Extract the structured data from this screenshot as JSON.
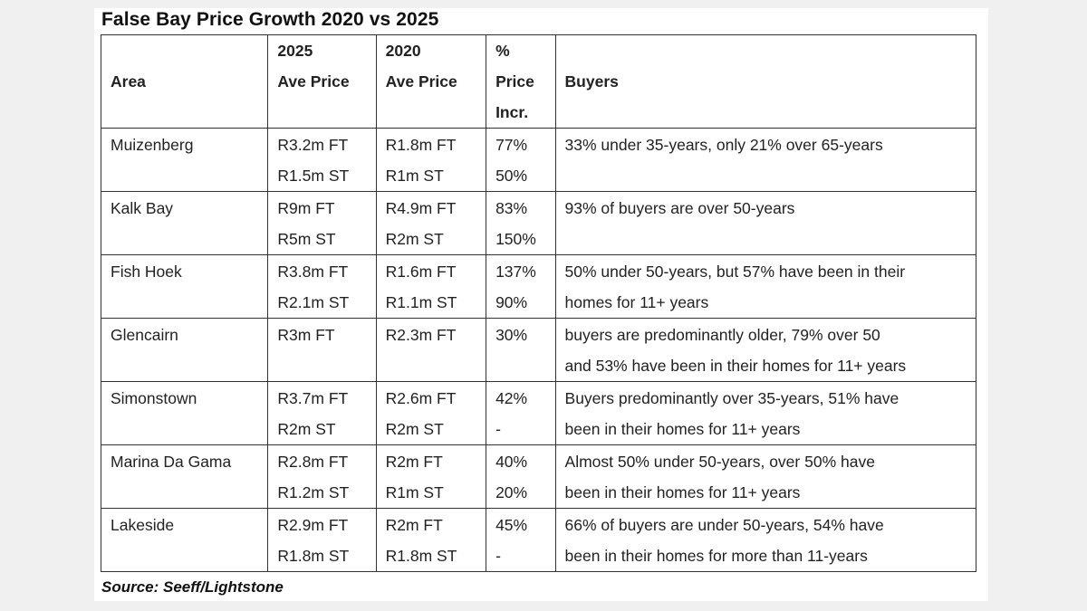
{
  "title": "False Bay Price Growth 2020 vs 2025",
  "headers": {
    "area": [
      "",
      "Area",
      ""
    ],
    "price_2025": [
      "2025",
      "Ave Price",
      ""
    ],
    "price_2020": [
      "2020",
      "Ave Price",
      ""
    ],
    "pct": [
      "%",
      "Price",
      "Incr."
    ],
    "buyers": [
      "",
      "Buyers",
      ""
    ]
  },
  "rows": [
    {
      "area": "Muizenberg",
      "p2025": [
        "R3.2m FT",
        "R1.5m ST"
      ],
      "p2020": [
        "R1.8m FT",
        "R1m ST"
      ],
      "pct": [
        "77%",
        "50%"
      ],
      "buyers": [
        "33% under 35-years, only 21% over 65-years",
        ""
      ]
    },
    {
      "area": "Kalk Bay",
      "p2025": [
        "R9m FT",
        "R5m ST"
      ],
      "p2020": [
        "R4.9m FT",
        "R2m ST"
      ],
      "pct": [
        "83%",
        "150%"
      ],
      "buyers": [
        "93% of buyers are over 50-years",
        ""
      ]
    },
    {
      "area": "Fish Hoek",
      "p2025": [
        "R3.8m FT",
        "R2.1m ST"
      ],
      "p2020": [
        "R1.6m FT",
        "R1.1m ST"
      ],
      "pct": [
        "137%",
        "90%"
      ],
      "buyers": [
        "50% under 50-years, but 57% have been in their",
        "homes for 11+ years"
      ]
    },
    {
      "area": "Glencairn",
      "p2025": [
        "R3m FT",
        ""
      ],
      "p2020": [
        "R2.3m FT",
        ""
      ],
      "pct": [
        "30%",
        ""
      ],
      "buyers": [
        "buyers are predominantly older, 79% over 50",
        "and 53% have been in their homes for 11+ years"
      ]
    },
    {
      "area": "Simonstown",
      "p2025": [
        "R3.7m FT",
        "R2m ST"
      ],
      "p2020": [
        "R2.6m FT",
        "R2m ST"
      ],
      "pct": [
        "42%",
        "-"
      ],
      "buyers": [
        "Buyers predominantly over 35-years, 51% have",
        "been in their homes for 11+ years"
      ]
    },
    {
      "area": "Marina Da Gama",
      "p2025": [
        "R2.8m FT",
        "R1.2m ST"
      ],
      "p2020": [
        "R2m FT",
        "R1m ST"
      ],
      "pct": [
        "40%",
        "20%"
      ],
      "buyers": [
        "Almost 50% under 50-years, over 50% have",
        "been in their homes for 11+ years"
      ]
    },
    {
      "area": "Lakeside",
      "p2025": [
        "R2.9m FT",
        "R1.8m ST"
      ],
      "p2020": [
        "R2m FT",
        "R1.8m ST"
      ],
      "pct": [
        "45%",
        "-"
      ],
      "buyers": [
        "66% of buyers are under 50-years, 54% have",
        "been in their homes for more than 11-years"
      ]
    }
  ],
  "source": "Source: Seeff/Lightstone"
}
